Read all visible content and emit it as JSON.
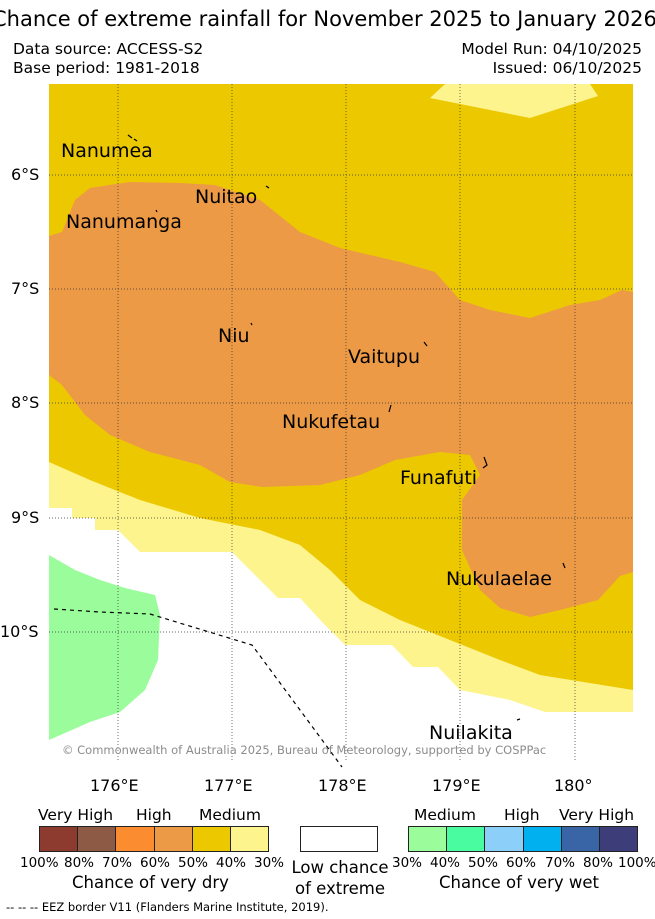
{
  "title": "Chance of extreme rainfall for November 2025 to January 2026",
  "meta": {
    "data_source": "Data source: ACCESS-S2",
    "base_period": "Base period: 1981-2018",
    "model_run": "Model Run: 04/10/2025",
    "issued": "Issued: 06/10/2025"
  },
  "map": {
    "lat_labels": [
      "6°S",
      "7°S",
      "8°S",
      "9°S",
      "10°S"
    ],
    "lon_labels": [
      "176°E",
      "177°E",
      "178°E",
      "179°E",
      "180°"
    ],
    "places": [
      "Nanumea",
      "Nuitao",
      "Nanumanga",
      "Niu",
      "Vaitupu",
      "Nukufetau",
      "Funafuti",
      "Nukulaelae",
      "Nuilakita"
    ],
    "copyright": "© Commonwealth of Australia 2025, Bureau of Meteorology, supported by COSPPac",
    "colors": {
      "dry_medium": "#ecc800",
      "dry_high": "#ec9a45",
      "dry_low": "#fdf48d",
      "wet_medium": "#9afc9a",
      "no_data": "#ffffff"
    }
  },
  "legend": {
    "dry": {
      "headers": [
        "Very High",
        "High",
        "Medium"
      ],
      "colors": [
        "#8c3b2e",
        "#8c5a45",
        "#fc8c30",
        "#ec9a45",
        "#ecc800",
        "#fdf48d"
      ],
      "percents": [
        "100%",
        "80%",
        "70%",
        "60%",
        "50%",
        "40%",
        "30%"
      ],
      "title": "Chance of very dry"
    },
    "low": {
      "title_line1": "Low chance",
      "title_line2": "of extreme"
    },
    "wet": {
      "headers": [
        "Medium",
        "High",
        "Very High"
      ],
      "colors": [
        "#9afc9a",
        "#4afca0",
        "#8ccff8",
        "#00b0ef",
        "#3965a6",
        "#3d3d7a"
      ],
      "percents": [
        "30%",
        "40%",
        "50%",
        "60%",
        "70%",
        "80%",
        "100%"
      ],
      "title": "Chance of very wet"
    }
  },
  "eez_note": "-- -- -- EEZ border V11 (Flanders Marine Institute, 2019)."
}
